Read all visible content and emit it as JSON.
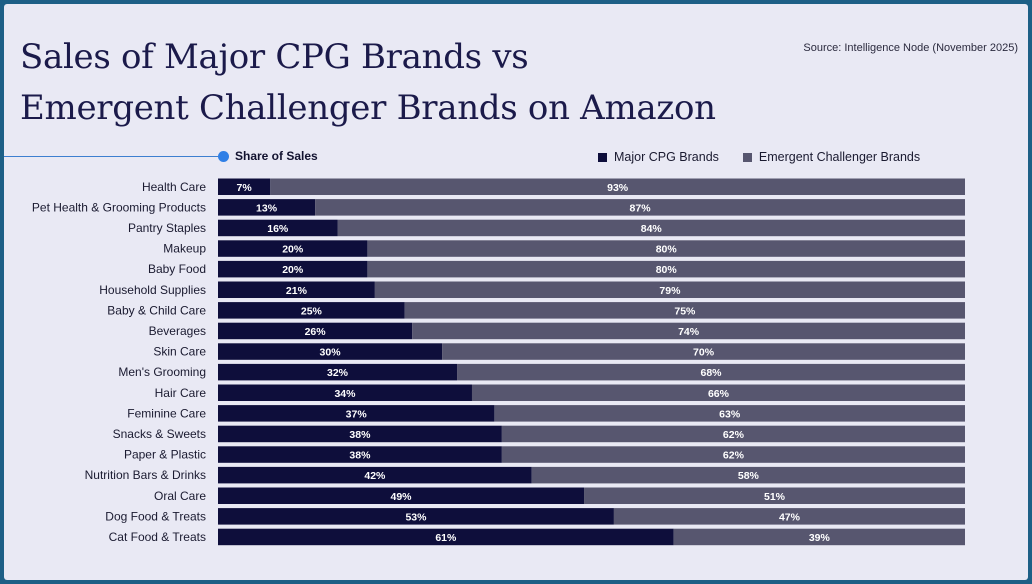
{
  "title_lines": [
    "Sales of Major CPG Brands vs",
    "Emergent Challenger Brands on Amazon"
  ],
  "source": "Source: Intelligence Node (November 2025)",
  "share_label": "Share of Sales",
  "colors": {
    "major": "#0e0e3b",
    "challenger": "#57566f",
    "accent": "#2f7fe6",
    "frame": "#1d5f86"
  },
  "chart_data": {
    "type": "bar",
    "orientation": "horizontal",
    "stacked": "100%",
    "title": "Sales of Major CPG Brands vs Emergent Challenger Brands on Amazon",
    "xlabel": "Share of Sales",
    "ylabel": "",
    "xlim": [
      0,
      100
    ],
    "legend_position": "top-right",
    "categories": [
      "Health Care",
      "Pet Health & Grooming Products",
      "Pantry Staples",
      "Makeup",
      "Baby Food",
      "Household Supplies",
      "Baby & Child Care",
      "Beverages",
      "Skin Care",
      "Men's Grooming",
      "Hair Care",
      "Feminine Care",
      "Snacks & Sweets",
      "Paper & Plastic",
      "Nutrition Bars & Drinks",
      "Oral Care",
      "Dog Food & Treats",
      "Cat Food & Treats"
    ],
    "series": [
      {
        "name": "Major CPG Brands",
        "values": [
          7,
          13,
          16,
          20,
          20,
          21,
          25,
          26,
          30,
          32,
          34,
          37,
          38,
          38,
          42,
          49,
          53,
          61
        ]
      },
      {
        "name": "Emergent Challenger Brands",
        "values": [
          93,
          87,
          84,
          80,
          80,
          79,
          75,
          74,
          70,
          68,
          66,
          63,
          62,
          62,
          58,
          51,
          47,
          39
        ]
      }
    ],
    "value_suffix": "%"
  }
}
